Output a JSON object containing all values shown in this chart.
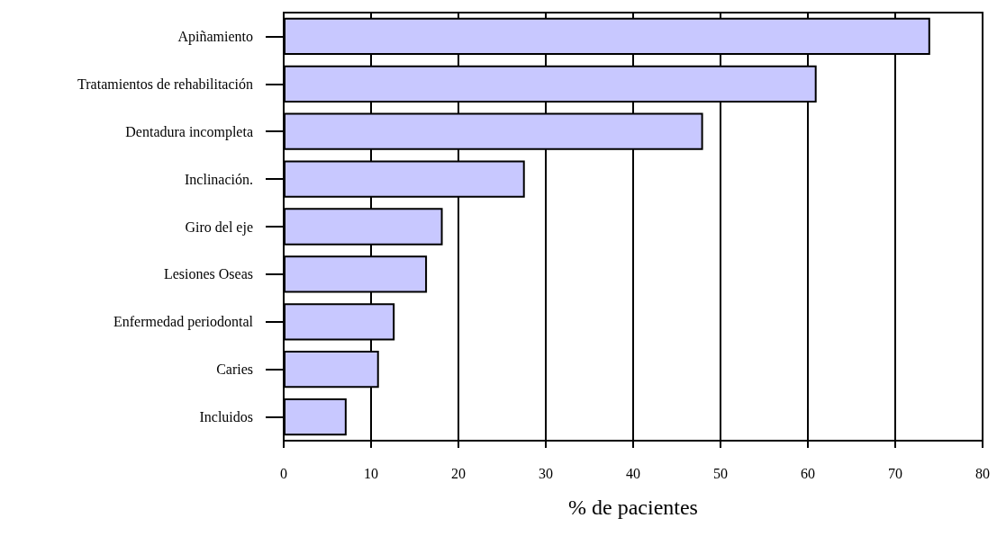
{
  "chart_data": {
    "type": "bar",
    "orientation": "horizontal",
    "xlabel": "% de pacientes",
    "categories": [
      "Apiñamiento",
      "Tratamientos de rehabilitación",
      "Dentadura incompleta",
      "Inclinación.",
      "Giro del eje",
      "Lesiones Oseas",
      "Enfermedad periodontal",
      "Caries",
      "Incluidos"
    ],
    "values": [
      74,
      61,
      48,
      27.6,
      18.2,
      16.4,
      12.7,
      10.9,
      7.2
    ],
    "color": "#c8c8ff",
    "xlim": [
      0,
      80
    ],
    "xticks": [
      0,
      10,
      20,
      30,
      40,
      50,
      60,
      70,
      80
    ],
    "grid": "x"
  }
}
